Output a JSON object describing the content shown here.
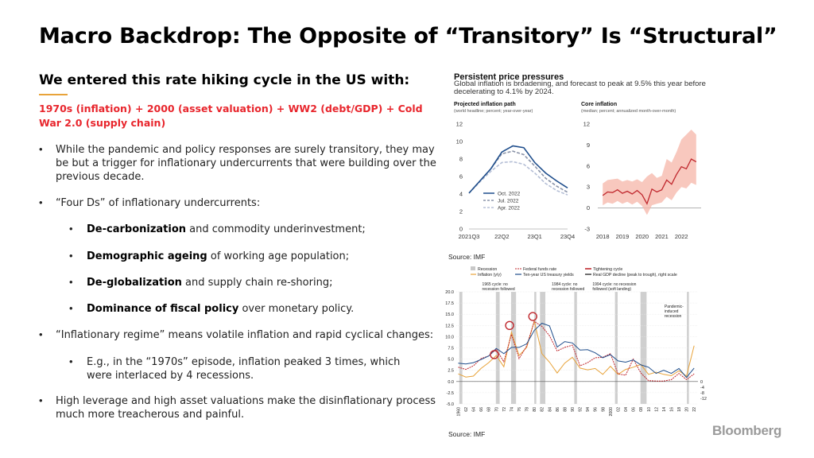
{
  "slide": {
    "title": "Macro Backdrop: The Opposite of “Transitory” Is “Structural”",
    "subhead": "We entered this rate hiking cycle in the US with:",
    "formula": "1970s (inflation) + 2000 (asset valuation) + WW2 (debt/GDP) + Cold War 2.0 (supply chain)",
    "bullets": {
      "b1": "While the pandemic and policy responses are surely transitory, they may be but a trigger for inflationary undercurrents that were building over the previous decade.",
      "b2": "“Four Ds” of inflationary undercurrents:",
      "d1_bold": "De-carbonization",
      "d1_rest": " and commodity underinvestment;",
      "d2_bold": "Demographic ageing",
      "d2_rest": " of working age population;",
      "d3_bold": "De-globalization",
      "d3_rest": " and supply chain re-shoring;",
      "d4_bold": "Dominance of fiscal policy",
      "d4_rest": " over monetary policy.",
      "b3": "“Inflationary regime” means volatile inflation and rapid cyclical changes:",
      "b3a": "E.g., in the “1970s” episode, inflation peaked 3 times, which were interlaced by 4 recessions.",
      "b4": "High leverage and high asset valuations make the disinflationary process much more treacherous and painful."
    },
    "bullet_char": "•",
    "logo": "Bloomberg"
  },
  "figure_top": {
    "title": "Persistent price pressures",
    "subtitle": "Global inflation is broadening, and forecast to peak at 9.5% this year before decelerating to 4.1% by 2024.",
    "source": "Source: IMF",
    "left_panel": {
      "title": "Projected inflation path",
      "subtitle": "(world headline; percent; year-over-year)"
    },
    "right_panel": {
      "title": "Core inflation",
      "subtitle": "(median; percent; annualized month-over-month)"
    }
  },
  "figure_bottom": {
    "source": "Source: IMF",
    "legend": {
      "recession": "Recession",
      "inflation": "Inflation (y/y)",
      "fed_funds": "Federal funds rate",
      "ten_year": "Ten-year US treasury yields",
      "tightening": "Tightening cycle",
      "real_gdp": "Real GDP decline (peak to trough), right scale"
    },
    "annotations": {
      "a1965": [
        "1965 cycle: no",
        "recession followed"
      ],
      "a1984": [
        "1984 cycle: no",
        "recession followed"
      ],
      "a1994": [
        "1994 cycle: no recession",
        "followed (soft landing)"
      ],
      "pandemic": [
        "Pandemic-",
        "induced",
        "recession"
      ]
    }
  },
  "chart_data": [
    {
      "type": "line",
      "title": "Projected inflation path",
      "subtitle": "(world headline; percent; year-over-year)",
      "x": [
        "2021Q3",
        "2021Q4",
        "2022Q1",
        "2022Q2",
        "2022Q3",
        "2022Q4",
        "2023Q1",
        "2023Q2",
        "2023Q3",
        "2023Q4"
      ],
      "xticks": [
        "2021Q3",
        "22Q2",
        "23Q1",
        "23Q4"
      ],
      "ylim": [
        0,
        12
      ],
      "yticks": [
        0,
        2,
        4,
        6,
        8,
        10,
        12
      ],
      "legend_position": "bottom-left",
      "series": [
        {
          "name": "Oct. 2022",
          "color": "#1f4e8c",
          "style": "solid",
          "values": [
            4.1,
            5.5,
            6.9,
            8.8,
            9.5,
            9.3,
            7.6,
            6.4,
            5.5,
            4.7
          ]
        },
        {
          "name": "Jul. 2022",
          "color": "#8a93a8",
          "style": "dashed",
          "values": [
            4.1,
            5.5,
            6.9,
            8.6,
            8.9,
            8.5,
            7.2,
            5.8,
            4.9,
            4.2
          ]
        },
        {
          "name": "Apr. 2022",
          "color": "#b5bfd6",
          "style": "dashed",
          "values": [
            4.1,
            5.4,
            6.6,
            7.6,
            7.7,
            7.4,
            6.4,
            5.2,
            4.4,
            3.9
          ]
        }
      ]
    },
    {
      "type": "area",
      "title": "Core inflation",
      "subtitle": "(median; percent; annualized month-over-month)",
      "xticks": [
        "2018",
        "2019",
        "2020",
        "2021",
        "2022"
      ],
      "ylim": [
        -3,
        12
      ],
      "yticks": [
        -3,
        0,
        3,
        6,
        9,
        12
      ],
      "x": [
        2018.0,
        2018.25,
        2018.5,
        2018.75,
        2019.0,
        2019.25,
        2019.5,
        2019.75,
        2020.0,
        2020.25,
        2020.5,
        2020.75,
        2021.0,
        2021.25,
        2021.5,
        2021.75,
        2022.0,
        2022.25,
        2022.5,
        2022.75
      ],
      "series": [
        {
          "name": "Median",
          "color": "#c0282e",
          "values": [
            1.8,
            2.3,
            2.2,
            2.6,
            2.1,
            2.4,
            2.0,
            2.5,
            1.9,
            0.6,
            2.7,
            2.3,
            2.6,
            4.0,
            3.4,
            4.8,
            5.9,
            5.6,
            7.0,
            6.6
          ]
        },
        {
          "name": "Band upper",
          "color": "#f5b5a8",
          "values": [
            3.5,
            4.0,
            4.1,
            4.2,
            3.8,
            4.0,
            3.8,
            4.1,
            3.7,
            4.5,
            5.0,
            4.3,
            4.6,
            7.0,
            6.5,
            8.0,
            9.8,
            10.5,
            11.2,
            10.5
          ]
        },
        {
          "name": "Band lower",
          "color": "#f5b5a8",
          "values": [
            0.4,
            0.8,
            0.6,
            1.0,
            0.6,
            0.9,
            0.5,
            0.9,
            0.3,
            -1.0,
            0.4,
            0.6,
            0.8,
            1.6,
            1.1,
            2.2,
            3.0,
            2.8,
            3.6,
            3.3
          ]
        }
      ]
    },
    {
      "type": "line",
      "xticks": [
        "1960",
        "62",
        "64",
        "66",
        "68",
        "70",
        "72",
        "74",
        "76",
        "78",
        "80",
        "82",
        "84",
        "86",
        "88",
        "90",
        "92",
        "94",
        "96",
        "98",
        "2000",
        "02",
        "04",
        "06",
        "08",
        "10",
        "12",
        "14",
        "16",
        "18",
        "20",
        "22"
      ],
      "x": [
        1960,
        1962,
        1964,
        1966,
        1968,
        1970,
        1972,
        1974,
        1976,
        1978,
        1980,
        1982,
        1984,
        1986,
        1988,
        1990,
        1992,
        1994,
        1996,
        1998,
        2000,
        2002,
        2004,
        2006,
        2008,
        2010,
        2012,
        2014,
        2016,
        2018,
        2020,
        2022
      ],
      "ylim": [
        -5,
        20
      ],
      "yticks": [
        -5.0,
        -2.5,
        0.0,
        2.5,
        5.0,
        7.5,
        10.0,
        12.5,
        15.0,
        17.5,
        20.0
      ],
      "right_yticks": [
        0,
        -4,
        -8,
        -12
      ],
      "recessions": [
        [
          1960.3,
          1961.1
        ],
        [
          1969.9,
          1970.9
        ],
        [
          1973.9,
          1975.2
        ],
        [
          1980.0,
          1980.5
        ],
        [
          1981.5,
          1982.9
        ],
        [
          1990.5,
          1991.2
        ],
        [
          2001.2,
          2001.9
        ],
        [
          2007.9,
          2009.5
        ],
        [
          2020.1,
          2020.4
        ]
      ],
      "series": [
        {
          "name": "Inflation (y/y)",
          "color": "#e8a33a",
          "values": [
            1.7,
            1.0,
            1.2,
            2.9,
            4.2,
            5.8,
            3.3,
            11.0,
            5.8,
            7.6,
            13.5,
            6.2,
            4.3,
            1.9,
            4.1,
            5.4,
            3.0,
            2.6,
            2.9,
            1.6,
            3.4,
            1.6,
            2.7,
            3.2,
            3.8,
            1.6,
            2.1,
            1.6,
            1.3,
            2.4,
            1.2,
            8.0
          ]
        },
        {
          "name": "Federal funds rate",
          "color": "#c0282e",
          "style": "dashed",
          "values": [
            3.2,
            2.7,
            3.5,
            5.1,
            5.7,
            7.2,
            4.4,
            10.5,
            5.1,
            7.9,
            13.4,
            12.3,
            10.2,
            6.8,
            7.6,
            8.1,
            3.5,
            4.2,
            5.3,
            5.4,
            6.2,
            1.7,
            1.4,
            5.0,
            1.9,
            0.2,
            0.1,
            0.1,
            0.4,
            1.8,
            0.4,
            1.7
          ]
        },
        {
          "name": "Ten-year US treasury yields",
          "color": "#1f4e8c",
          "values": [
            4.1,
            3.9,
            4.2,
            4.9,
            5.7,
            7.4,
            6.2,
            7.6,
            7.6,
            8.4,
            11.4,
            13.0,
            12.4,
            7.7,
            8.9,
            8.6,
            7.0,
            7.1,
            6.4,
            5.3,
            6.0,
            4.6,
            4.3,
            4.8,
            3.7,
            3.2,
            1.8,
            2.5,
            1.8,
            2.9,
            0.9,
            3.0
          ]
        }
      ]
    }
  ]
}
